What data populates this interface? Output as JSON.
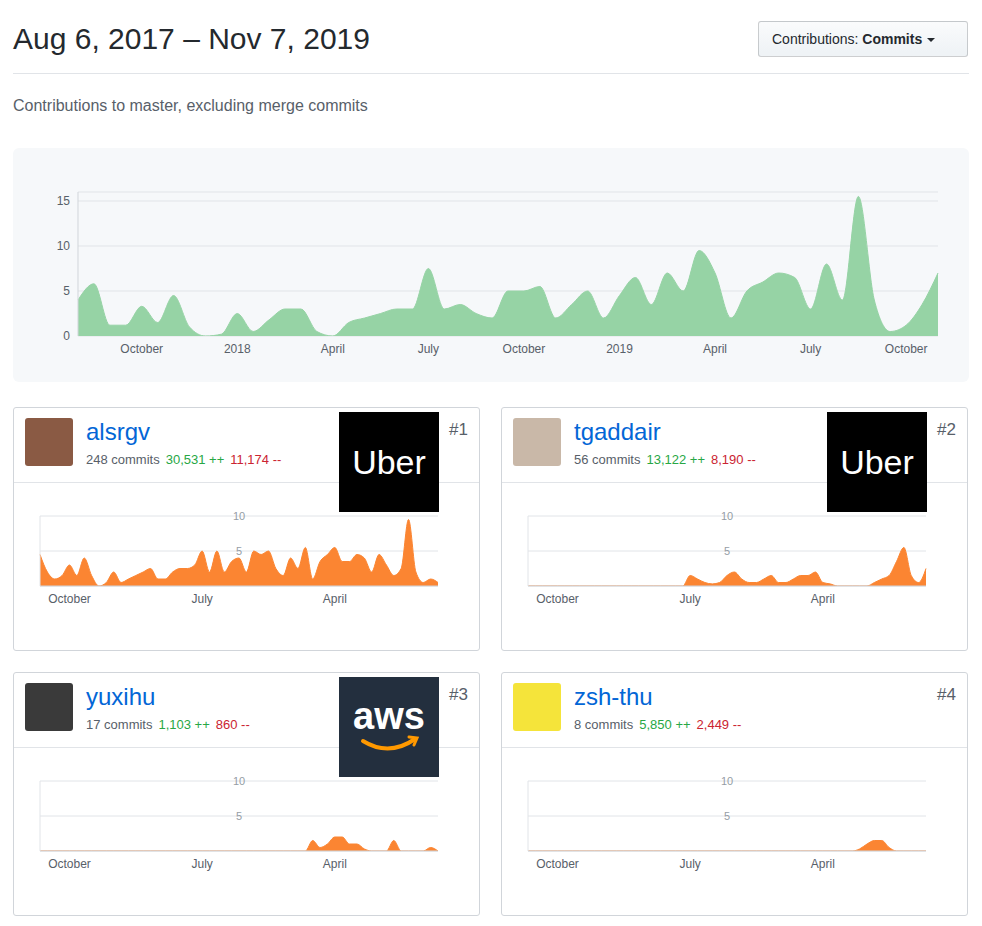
{
  "header": {
    "title": "Aug 6, 2017 – Nov 7, 2019",
    "subtitle": "Contributions to master, excluding merge commits",
    "dropdown_label": "Contributions:",
    "dropdown_value": "Commits"
  },
  "chart_data": [
    {
      "type": "area",
      "categories": [
        null,
        null,
        null,
        null,
        "October",
        null,
        null,
        null,
        null,
        null,
        "2018",
        null,
        null,
        null,
        null,
        null,
        "April",
        null,
        null,
        null,
        null,
        null,
        "July",
        null,
        null,
        null,
        null,
        null,
        "October",
        null,
        null,
        null,
        null,
        null,
        "2019",
        null,
        null,
        null,
        null,
        null,
        "April",
        null,
        null,
        null,
        null,
        null,
        "July",
        null,
        null,
        null,
        null,
        null,
        "October",
        null,
        null
      ],
      "values": [
        4,
        5.8,
        1.2,
        1.2,
        3.3,
        1.5,
        4.5,
        1,
        0,
        0.2,
        2.5,
        0.5,
        1.8,
        3,
        3,
        0.5,
        0,
        1.5,
        2,
        2.5,
        3,
        3,
        7.5,
        3,
        3.5,
        2.5,
        2,
        5,
        5,
        5.5,
        2,
        3.5,
        5,
        2,
        4.5,
        6.5,
        3.5,
        7,
        5,
        9.5,
        7,
        2,
        5,
        6,
        7,
        6.5,
        3,
        8,
        4,
        15.5,
        4,
        0.5,
        1.2,
        3.5,
        7
      ],
      "color": "#96d3a5",
      "ylim": [
        0,
        16
      ],
      "yticks": [
        0,
        5,
        10,
        15
      ],
      "grid": true
    },
    {
      "type": "area",
      "title": "alsrgv",
      "subtitle": "248 commits",
      "annotations": {
        "additions": "30,531 ++",
        "deletions": "11,174 --",
        "rank": "#1",
        "logo": "Uber"
      },
      "categories": [
        null,
        null,
        null,
        null,
        "October",
        null,
        null,
        null,
        null,
        null,
        null,
        null,
        null,
        null,
        null,
        null,
        null,
        null,
        null,
        null,
        null,
        null,
        "July",
        null,
        null,
        null,
        null,
        null,
        null,
        null,
        null,
        null,
        null,
        null,
        null,
        null,
        null,
        null,
        null,
        null,
        "April",
        null,
        null,
        null,
        null,
        null,
        null,
        null,
        null,
        null,
        null,
        null,
        null,
        null,
        null
      ],
      "values": [
        4.5,
        2,
        1,
        1.5,
        3,
        1.5,
        4,
        1.5,
        0,
        0.5,
        2,
        0.5,
        1,
        1.5,
        2,
        2.5,
        1,
        1,
        2,
        2.5,
        2.5,
        3,
        5,
        2,
        5,
        2,
        3.5,
        4,
        2,
        5,
        4.5,
        5,
        2.5,
        1.5,
        4,
        2.5,
        5.5,
        1,
        3.5,
        4.5,
        5.5,
        3.5,
        3.5,
        4.5,
        4,
        2,
        4.5,
        3,
        1.5,
        2.5,
        9.5,
        2,
        0.5,
        1,
        0.5
      ],
      "color": "#fb8532",
      "ylim": [
        0,
        10
      ],
      "yticks": [
        5,
        10
      ],
      "grid": true
    },
    {
      "type": "area",
      "title": "tgaddair",
      "subtitle": "56 commits",
      "annotations": {
        "additions": "13,122 ++",
        "deletions": "8,190 --",
        "rank": "#2",
        "logo": "Uber"
      },
      "categories": [
        null,
        null,
        null,
        null,
        "October",
        null,
        null,
        null,
        null,
        null,
        null,
        null,
        null,
        null,
        null,
        null,
        null,
        null,
        null,
        null,
        null,
        null,
        "July",
        null,
        null,
        null,
        null,
        null,
        null,
        null,
        null,
        null,
        null,
        null,
        null,
        null,
        null,
        null,
        null,
        null,
        "April",
        null,
        null,
        null,
        null,
        null,
        null,
        null,
        null,
        null,
        null,
        null,
        null,
        null,
        null
      ],
      "values": [
        0,
        0,
        0,
        0,
        0,
        0,
        0,
        0,
        0,
        0,
        0,
        0,
        0,
        0,
        0,
        0,
        0,
        0,
        0,
        0,
        0,
        0,
        1.5,
        1,
        0.5,
        0.3,
        0.5,
        1.5,
        2,
        1,
        0.5,
        0.5,
        1,
        1.5,
        0.5,
        0.5,
        1,
        1.5,
        1.5,
        2,
        0.5,
        0.3,
        0,
        0,
        0,
        0,
        0,
        0.5,
        1,
        1.5,
        3.5,
        5.5,
        1.5,
        0.5,
        2.5
      ],
      "color": "#fb8532",
      "ylim": [
        0,
        10
      ],
      "yticks": [
        5,
        10
      ],
      "grid": true
    },
    {
      "type": "area",
      "title": "yuxihu",
      "subtitle": "17 commits",
      "annotations": {
        "additions": "1,103 ++",
        "deletions": "860 --",
        "rank": "#3",
        "logo": "aws"
      },
      "categories": [
        null,
        null,
        null,
        null,
        "October",
        null,
        null,
        null,
        null,
        null,
        null,
        null,
        null,
        null,
        null,
        null,
        null,
        null,
        null,
        null,
        null,
        null,
        "July",
        null,
        null,
        null,
        null,
        null,
        null,
        null,
        null,
        null,
        null,
        null,
        null,
        null,
        null,
        null,
        null,
        null,
        "April",
        null,
        null,
        null,
        null,
        null,
        null,
        null,
        null,
        null,
        null,
        null,
        null,
        null,
        null
      ],
      "values": [
        0,
        0,
        0,
        0,
        0,
        0,
        0,
        0,
        0,
        0,
        0,
        0,
        0,
        0,
        0,
        0,
        0,
        0,
        0,
        0,
        0,
        0,
        0,
        0,
        0,
        0,
        0,
        0,
        0,
        0,
        0,
        0,
        0,
        0,
        0,
        0,
        0,
        1.5,
        0.5,
        1,
        2,
        2,
        1,
        1,
        0.3,
        0,
        0,
        0,
        1.5,
        0,
        0,
        0,
        0,
        0.5,
        0
      ],
      "color": "#fb8532",
      "ylim": [
        0,
        10
      ],
      "yticks": [
        5,
        10
      ],
      "grid": true
    },
    {
      "type": "area",
      "title": "zsh-thu",
      "subtitle": "8 commits",
      "annotations": {
        "additions": "5,850 ++",
        "deletions": "2,449 --",
        "rank": "#4"
      },
      "categories": [
        null,
        null,
        null,
        null,
        "October",
        null,
        null,
        null,
        null,
        null,
        null,
        null,
        null,
        null,
        null,
        null,
        null,
        null,
        null,
        null,
        null,
        null,
        "July",
        null,
        null,
        null,
        null,
        null,
        null,
        null,
        null,
        null,
        null,
        null,
        null,
        null,
        null,
        null,
        null,
        null,
        "April",
        null,
        null,
        null,
        null,
        null,
        null,
        null,
        null,
        null,
        null,
        null,
        null,
        null,
        null
      ],
      "values": [
        0,
        0,
        0,
        0,
        0,
        0,
        0,
        0,
        0,
        0,
        0,
        0,
        0,
        0,
        0,
        0,
        0,
        0,
        0,
        0,
        0,
        0,
        0,
        0,
        0,
        0,
        0,
        0,
        0,
        0,
        0,
        0,
        0,
        0,
        0,
        0,
        0,
        0,
        0,
        0,
        0,
        0,
        0,
        0,
        0,
        0.3,
        1,
        1.5,
        1.5,
        0.5,
        0,
        0,
        0,
        0,
        0
      ],
      "color": "#fb8532",
      "ylim": [
        0,
        10
      ],
      "yticks": [
        5,
        10
      ],
      "grid": true
    }
  ]
}
